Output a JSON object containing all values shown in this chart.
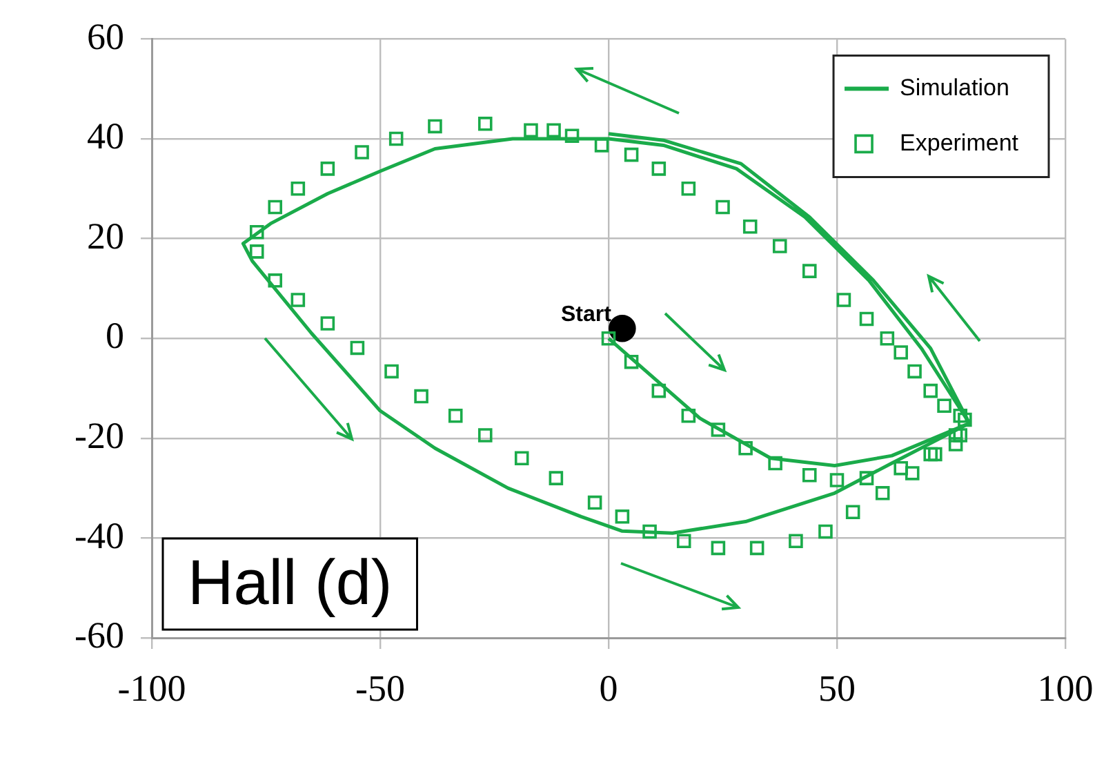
{
  "chart_data": {
    "type": "line",
    "xlim": [
      -100,
      100
    ],
    "xticks": [
      -100,
      -50,
      0,
      50,
      100
    ],
    "ylim": [
      -60,
      60
    ],
    "yticks": [
      -60,
      -40,
      -20,
      0,
      20,
      40,
      60
    ],
    "grid": true,
    "legend": "top right",
    "series": [
      {
        "name": "Simulation",
        "type": "line",
        "marker": "none",
        "color": "#1aab4a",
        "x": [
          0,
          20,
          35.5,
          49.5,
          62,
          79,
          68.5,
          57,
          43,
          28,
          12,
          0,
          -21,
          -38,
          -50,
          -61.5,
          -74,
          -80,
          -78,
          -65,
          -50,
          -38,
          -22,
          -6,
          3,
          14,
          30,
          49.5,
          62,
          79,
          70.5,
          58,
          44,
          29,
          12,
          0
        ],
        "values": [
          0,
          -16,
          -24,
          -25.5,
          -23.5,
          -17,
          -2,
          11.6,
          24.3,
          34,
          38.7,
          40,
          40,
          38,
          33.5,
          29,
          23,
          19,
          15.5,
          1,
          -14.5,
          -22,
          -30,
          -35.7,
          -38.6,
          -39,
          -36.7,
          -31,
          -25,
          -17,
          -2,
          11.6,
          24.3,
          35,
          39.7,
          41
        ]
      },
      {
        "name": "Experiment",
        "type": "scatter",
        "marker": "square",
        "color": "#1aab4a",
        "x": [
          0,
          5,
          11,
          17.5,
          24,
          30,
          36.5,
          44,
          50,
          56.5,
          64,
          70.5,
          76,
          77,
          77,
          73.5,
          70.5,
          67,
          64,
          61,
          56.5,
          51.5,
          44,
          37.5,
          31,
          25,
          17.5,
          11,
          5,
          -1.5,
          -8,
          -12,
          -17,
          -27,
          -38,
          -46.5,
          -54,
          -61.5,
          -68,
          -73,
          -77,
          -77,
          -73,
          -68,
          -61.5,
          -55,
          -47.5,
          -41,
          -33.5,
          -27,
          -19,
          -11.5,
          -3,
          3,
          9,
          16.5,
          24,
          32.5,
          41,
          47.5,
          53.5,
          60,
          66.5,
          71.5,
          76,
          78
        ],
        "values": [
          0,
          -4.7,
          -10.5,
          -15.5,
          -18.3,
          -22,
          -25,
          -27.4,
          -28.4,
          -28,
          -26,
          -23.2,
          -21.2,
          -19.4,
          -15.5,
          -13.5,
          -10.5,
          -6.6,
          -2.8,
          0,
          3.9,
          7.7,
          13.5,
          18.5,
          22.4,
          26.3,
          30,
          34,
          36.8,
          38.7,
          40.6,
          41.7,
          41.7,
          43,
          42.5,
          40,
          37.3,
          34,
          30,
          26.3,
          21.3,
          17.4,
          11.6,
          7.7,
          3,
          -1.9,
          -6.6,
          -11.6,
          -15.5,
          -19.4,
          -24,
          -28,
          -32.9,
          -35.7,
          -38.7,
          -40.6,
          -42,
          -42,
          -40.6,
          -38.7,
          -34.8,
          -31,
          -27,
          -23.2,
          -19.4,
          -16.3
        ]
      },
      {
        "type": "scatter",
        "marker": "circle",
        "color": "#000000",
        "x": [
          3
        ],
        "values": [
          2
        ]
      }
    ],
    "annotations": [
      {
        "text": "Start",
        "x": 3,
        "y": 2
      },
      "Hall (d)"
    ]
  }
}
